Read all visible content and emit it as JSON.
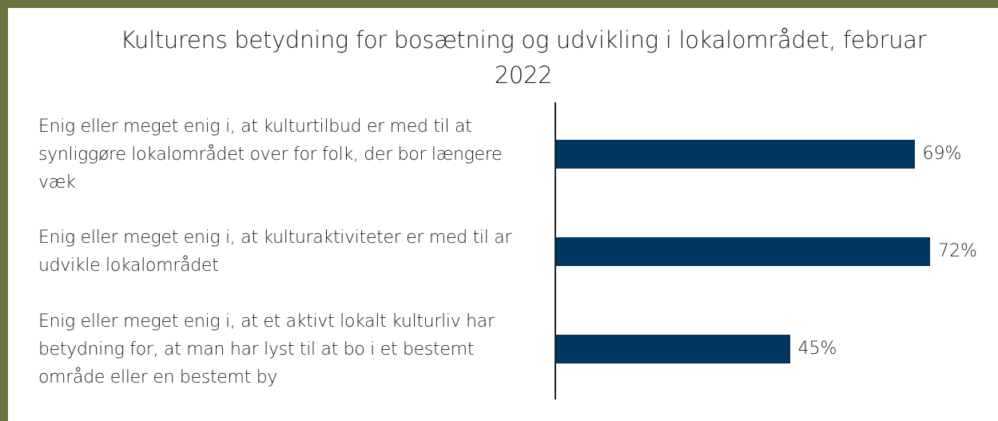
{
  "chart_data": {
    "type": "barh",
    "title": "Kulturens betydning for bosætning og udvikling i lokalområdet, februar 2022",
    "categories": [
      "Enig eller meget enig i, at kulturtilbud er med til at synliggøre lokalområdet over for folk, der bor længere væk",
      "Enig eller meget enig i, at kulturaktiviteter er med til ar udvikle lokalområdet",
      "Enig eller meget enig i, at et aktivt lokalt kulturliv har betydning for, at man har lyst til at bo i et bestemt område eller en bestemt by"
    ],
    "values": [
      69,
      72,
      45
    ],
    "value_labels": [
      "69%",
      "72%",
      "45%"
    ],
    "color": "#003660"
  }
}
